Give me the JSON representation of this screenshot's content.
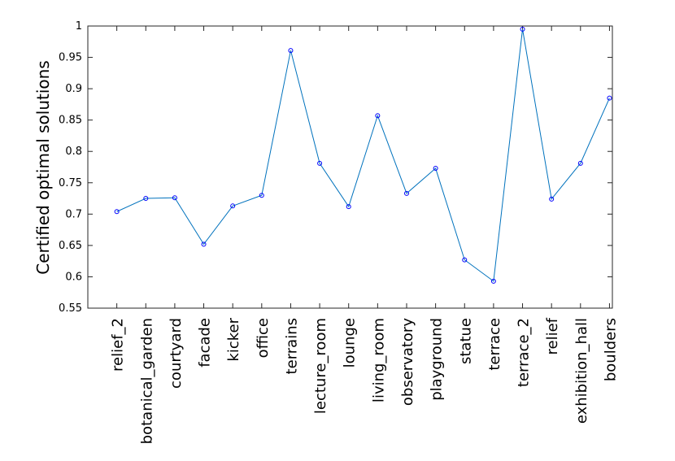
{
  "chart_data": {
    "type": "line",
    "y_label": "Certified optimal solutions",
    "categories": [
      "relief_2",
      "botanical_garden",
      "courtyard",
      "facade",
      "kicker",
      "office",
      "terrains",
      "lecture_room",
      "lounge",
      "living_room",
      "observatory",
      "playground",
      "statue",
      "terrace",
      "terrace_2",
      "relief",
      "exhibition_hall",
      "boulders"
    ],
    "series": [
      {
        "color": "#0072bd",
        "marker_color": "#0000ff",
        "values": [
          0.704,
          0.725,
          0.726,
          0.652,
          0.713,
          0.73,
          0.961,
          0.781,
          0.712,
          0.857,
          0.733,
          0.773,
          0.627,
          0.593,
          0.995,
          0.724,
          0.781,
          0.885
        ]
      }
    ],
    "ylim": [
      0.55,
      1
    ],
    "yticks": [
      0.55,
      0.6,
      0.65,
      0.7,
      0.75,
      0.8,
      0.85,
      0.9,
      0.95,
      1
    ],
    "grid": false
  }
}
